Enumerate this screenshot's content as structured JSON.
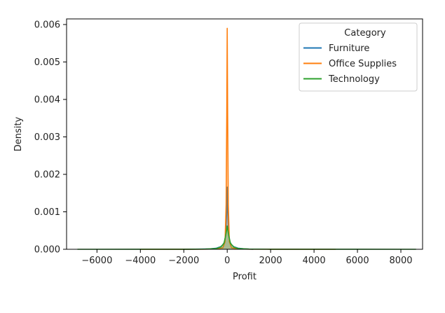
{
  "chart_data": {
    "type": "line",
    "subtype": "kde",
    "title": "",
    "xlabel": "Profit",
    "ylabel": "Density",
    "xlim": [
      -7400,
      9000
    ],
    "ylim": [
      0,
      0.00615
    ],
    "xticks": [
      -6000,
      -4000,
      -2000,
      0,
      2000,
      4000,
      6000,
      8000
    ],
    "xtick_labels": [
      "−6000",
      "−4000",
      "−2000",
      "0",
      "2000",
      "4000",
      "6000",
      "8000"
    ],
    "yticks": [
      0,
      0.001,
      0.002,
      0.003,
      0.004,
      0.005,
      0.006
    ],
    "ytick_labels": [
      "0.000",
      "0.001",
      "0.002",
      "0.003",
      "0.004",
      "0.005",
      "0.006"
    ],
    "grid": false,
    "legend": {
      "title": "Category",
      "placement": "top-right"
    },
    "series": [
      {
        "name": "Furniture",
        "color": "#1f77b4",
        "x": [
          -2000,
          -1200,
          -800,
          -500,
          -300,
          -200,
          -120,
          -60,
          -25,
          0,
          25,
          60,
          120,
          200,
          300,
          500,
          800,
          1200
        ],
        "y": [
          0.0,
          5e-06,
          1e-05,
          3e-05,
          7e-05,
          0.00012,
          0.0002,
          0.00045,
          0.001,
          0.00166,
          0.001,
          0.00045,
          0.0002,
          0.00012,
          7e-05,
          3e-05,
          1e-05,
          0.0
        ]
      },
      {
        "name": "Office Supplies",
        "color": "#ff7f0e",
        "x": [
          -4000,
          -2000,
          -1000,
          -500,
          -200,
          -100,
          -50,
          -20,
          0,
          20,
          50,
          100,
          200,
          500,
          1000,
          2000,
          5000
        ],
        "y": [
          0.0,
          2e-06,
          4e-06,
          1e-05,
          4e-05,
          0.0002,
          0.0012,
          0.0036,
          0.0059,
          0.0036,
          0.0012,
          0.0002,
          4e-05,
          1e-05,
          4e-06,
          2e-06,
          0.0
        ]
      },
      {
        "name": "Technology",
        "color": "#2ca02c",
        "x": [
          -6900,
          -4000,
          -2000,
          -1000,
          -500,
          -300,
          -150,
          -75,
          0,
          75,
          150,
          300,
          500,
          1000,
          2000,
          5000,
          8700
        ],
        "y": [
          0.0,
          5e-07,
          2e-06,
          5e-06,
          2e-05,
          6e-05,
          0.00016,
          0.00035,
          0.00062,
          0.00035,
          0.00016,
          6e-05,
          2e-05,
          5e-06,
          2e-06,
          5e-07,
          0.0
        ]
      }
    ]
  }
}
